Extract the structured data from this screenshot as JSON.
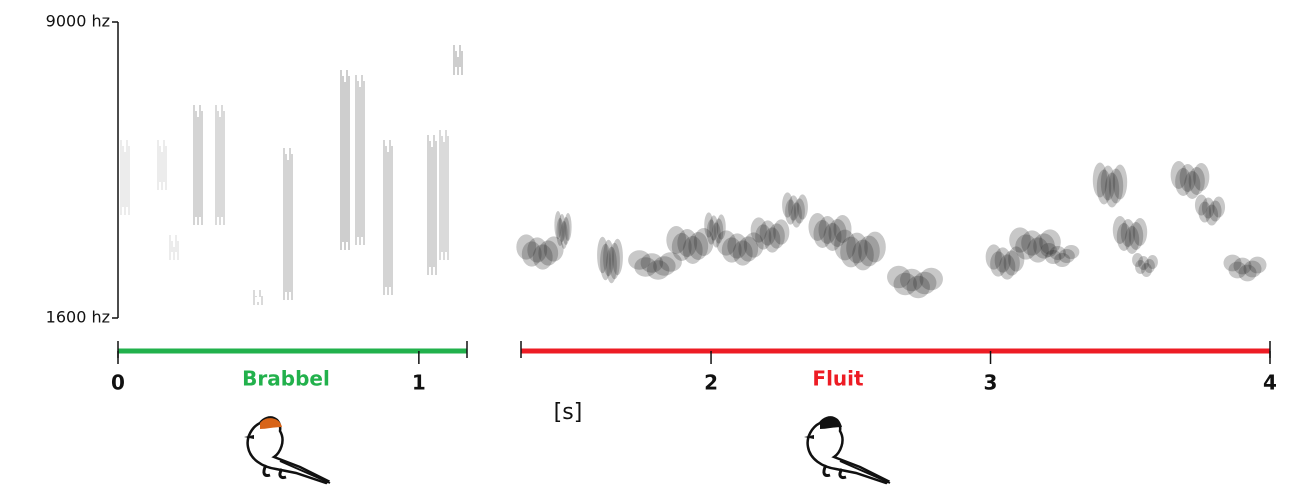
{
  "chart_data": [
    {
      "type": "spectrogram",
      "label": "Brabbel",
      "color": "#22b14c",
      "xlim": [
        0,
        1.16
      ],
      "xticks": [
        0,
        1
      ],
      "ylim": [
        1600,
        9000
      ],
      "yticks": [
        {
          "value": 9000,
          "label": "9000 hz"
        },
        {
          "value": 1600,
          "label": "1600 hz"
        }
      ]
    },
    {
      "type": "spectrogram",
      "label": "Fluit",
      "color": "#ed1c24",
      "xlim": [
        1.32,
        4
      ],
      "xticks": [
        2,
        3,
        4
      ],
      "xlabel": "[s]"
    }
  ]
}
